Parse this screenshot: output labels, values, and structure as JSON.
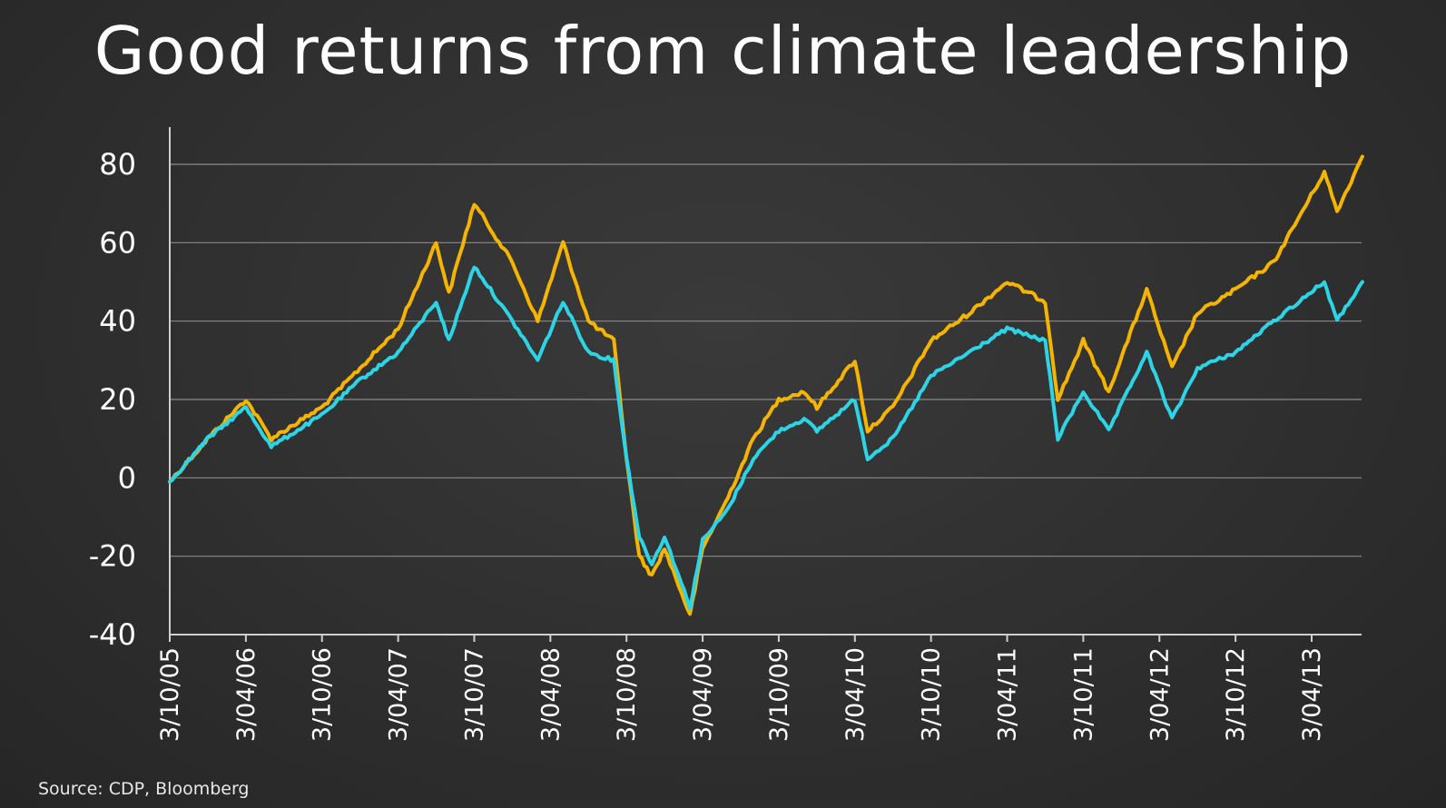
{
  "slide": {
    "title": "Good returns from climate leadership",
    "source": "Source: CDP, Bloomberg"
  },
  "chart_data": {
    "type": "line",
    "title": "",
    "xlabel": "",
    "ylabel": "",
    "ylim": [
      -40,
      90
    ],
    "yticks": [
      80,
      60,
      40,
      20,
      0,
      -20,
      -40
    ],
    "xticks": [
      "3/10/05",
      "3/04/06",
      "3/10/06",
      "3/04/07",
      "3/10/07",
      "3/04/08",
      "3/10/08",
      "3/04/09",
      "3/10/09",
      "3/04/10",
      "3/10/10",
      "3/04/11",
      "3/10/11",
      "3/04/12",
      "3/10/12",
      "3/04/13"
    ],
    "grid": true,
    "legend": "none",
    "x": [
      "3/10/05",
      "3/01/06",
      "3/04/06",
      "3/06/06",
      "3/10/06",
      "3/01/07",
      "3/04/07",
      "3/07/07",
      "3/08/07",
      "3/10/07",
      "3/01/08",
      "3/03/08",
      "3/05/08",
      "3/07/08",
      "3/09/08",
      "3/10/08",
      "3/11/08",
      "3/12/08",
      "3/01/09",
      "3/03/09",
      "3/04/09",
      "3/06/09",
      "3/08/09",
      "3/10/09",
      "3/12/09",
      "3/01/10",
      "3/04/10",
      "3/05/10",
      "3/07/10",
      "3/10/10",
      "3/01/11",
      "3/04/11",
      "3/07/11",
      "3/08/11",
      "3/10/11",
      "3/12/11",
      "3/03/12",
      "3/05/12",
      "3/07/12",
      "3/10/12",
      "3/01/13",
      "3/05/13",
      "3/06/13",
      "3/08/13"
    ],
    "series": [
      {
        "color": "#f4b400",
        "values": [
          -1,
          10,
          20,
          10,
          18,
          28,
          38,
          60,
          47,
          70,
          55,
          40,
          60,
          40,
          35,
          5,
          -20,
          -25,
          -18,
          -35,
          -18,
          -5,
          10,
          20,
          22,
          18,
          30,
          12,
          18,
          35,
          42,
          50,
          45,
          20,
          35,
          22,
          48,
          28,
          42,
          48,
          55,
          78,
          68,
          82
        ]
      },
      {
        "color": "#2dd4e6",
        "values": [
          -1,
          10,
          18,
          8,
          16,
          25,
          32,
          45,
          35,
          54,
          40,
          30,
          45,
          32,
          30,
          5,
          -15,
          -22,
          -15,
          -33,
          -16,
          -8,
          5,
          12,
          15,
          12,
          20,
          5,
          10,
          26,
          32,
          38,
          35,
          10,
          22,
          12,
          32,
          15,
          28,
          32,
          40,
          50,
          40,
          50
        ]
      }
    ]
  }
}
